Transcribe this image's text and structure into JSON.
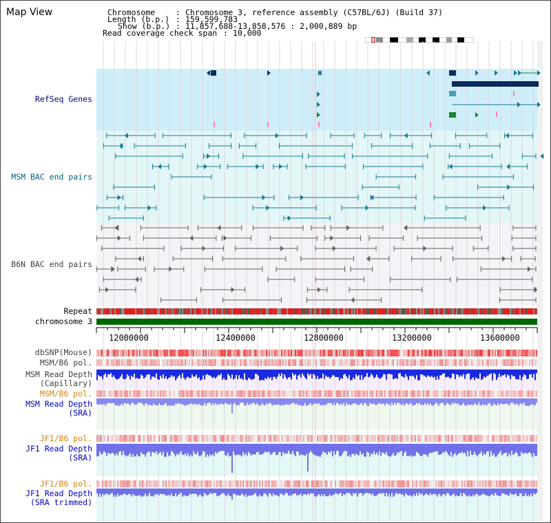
{
  "window": {
    "title": "Map View"
  },
  "info": {
    "chromosome_label": "Chromosome",
    "chromosome_value": "Chromosome 3, reference assembly (C57BL/6J) (Build 37)",
    "length_label": "Length (b.p.)",
    "length_value": "159,599,783",
    "show_label": "Show (b.p.)",
    "show_value": "11,857,688-13,858,576 : 2,000,889 bp",
    "coverage_label": "Read coverage check span",
    "coverage_value": "10,000"
  },
  "tracks": {
    "refseq": "RefSeq Genes",
    "msm_bac": "MSM BAC end pairs",
    "b6n_bac": "B6N BAC end pairs",
    "repeat": "Repeat",
    "chromosome": "chromosome 3",
    "dbsnp": "dbSNP(Mouse)",
    "msm_b6_pol_1": "MSM/B6 pol.",
    "msm_depth_cap_1": "MSM Read Depth",
    "msm_depth_cap_2": "(Capillary)",
    "msm_b6_pol_2": "MSM/B6 pol.",
    "msm_depth_sra_1": "MSM Read Depth",
    "msm_depth_sra_2": "(SRA)",
    "jf1_b6_pol_1": "JF1/B6 pol.",
    "jf1_depth_sra_1": "JF1 Read Depth",
    "jf1_depth_sra_2": "(SRA)",
    "jf1_b6_pol_2": "JF1/B6 pol.",
    "jf1_depth_trim_1": "JF1 Read Depth",
    "jf1_depth_trim_2": "(SRA trimmed)"
  },
  "axis": {
    "ticks": [
      "12000000",
      "12400000",
      "12800000",
      "13200000",
      "13600000"
    ]
  },
  "colors": {
    "refseq_bg": "#cfeefa",
    "msm_bg": "#e3f6f8",
    "b6n_bg": "#f4f4f8",
    "msm_depth_bg": "#f6eefa",
    "sra_bg": "#eef8ee",
    "jf1_bg": "#e4f8f8",
    "refseq_text": "#000080",
    "msm_text": "#006080",
    "b6n_text": "#404040",
    "orange_text": "#e08000",
    "depth_blue": "#0000c0",
    "chromosome_green": "#006600"
  }
}
